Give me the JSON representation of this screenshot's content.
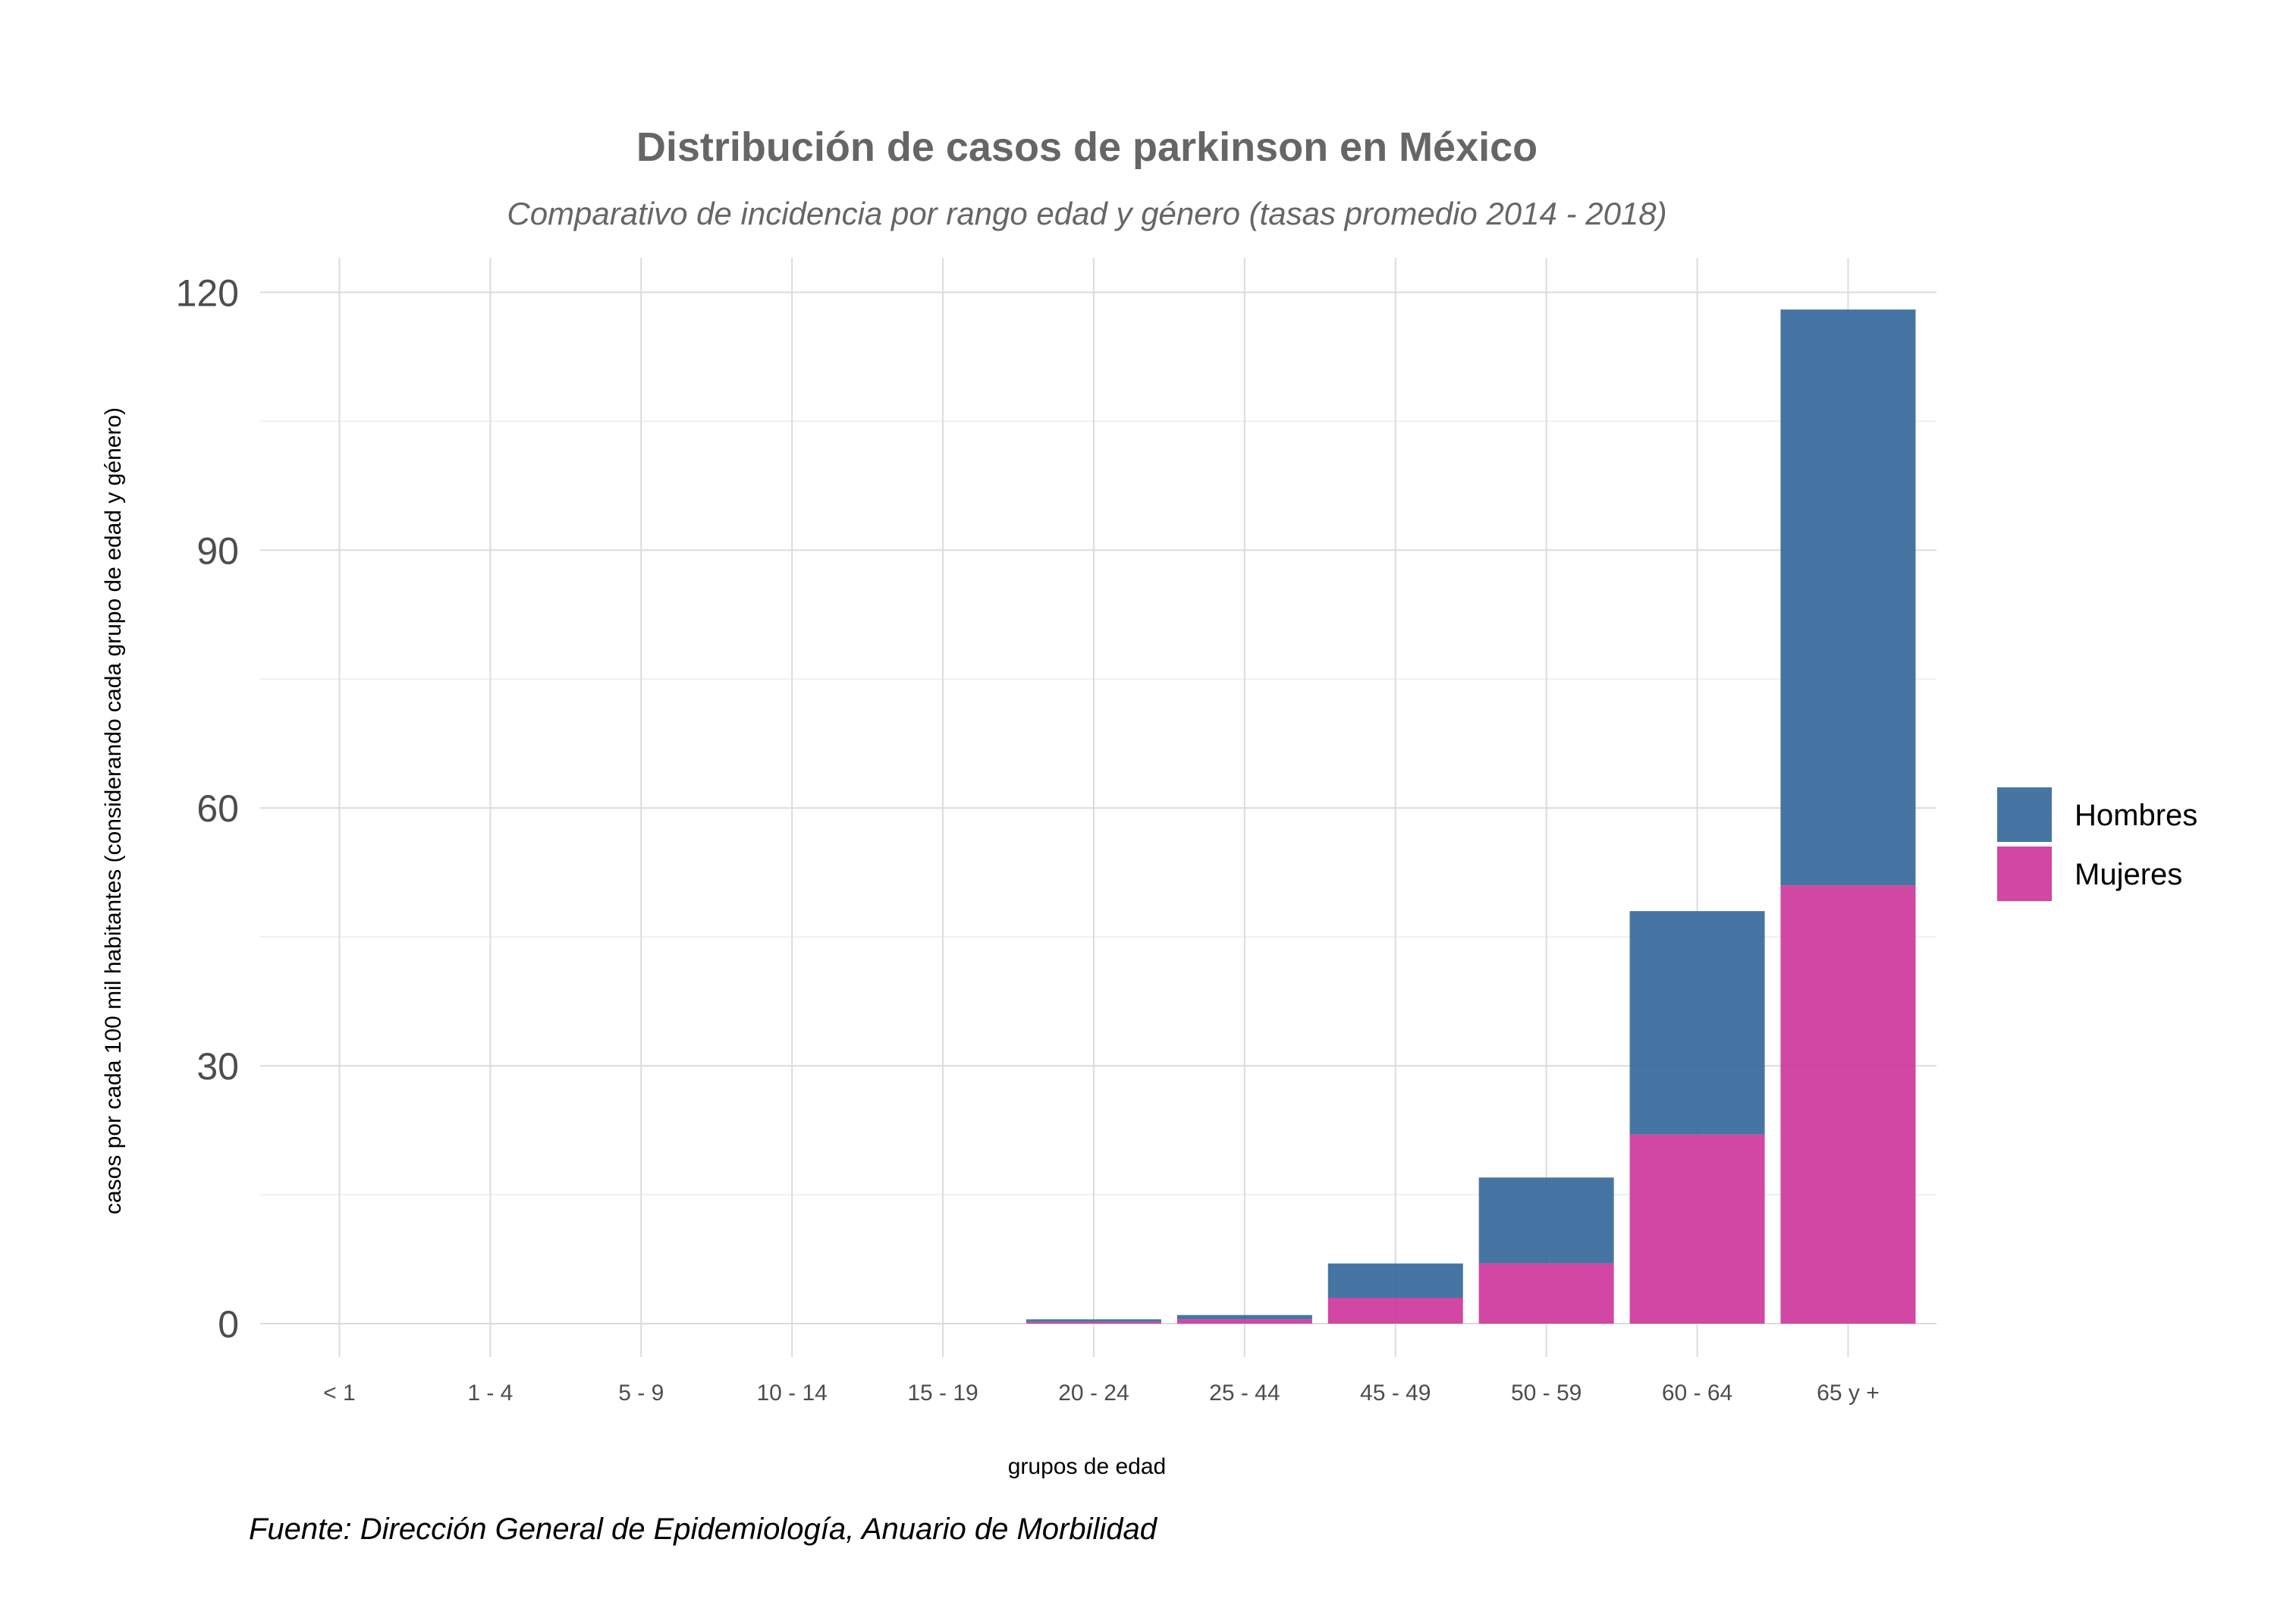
{
  "chart_data": {
    "type": "bar",
    "stacked": true,
    "title": "Distribución de casos de parkinson en México",
    "subtitle": "Comparativo de incidencia por rango edad y género (tasas promedio 2014 - 2018)",
    "xlabel": "grupos de edad",
    "ylabel": "casos por cada 100 mil habitantes (considerando cada grupo de edad y género)",
    "caption": "Fuente: Dirección General de Epidemiología, Anuario de Morbilidad",
    "categories": [
      "< 1",
      "1 - 4",
      "5 - 9",
      "10 - 14",
      "15 - 19",
      "20 - 24",
      "25 - 44",
      "45 - 49",
      "50 - 59",
      "60 - 64",
      "65 y +"
    ],
    "series": [
      {
        "name": "Mujeres",
        "color": "#cc3399",
        "values": [
          0,
          0,
          0,
          0,
          0,
          0.2,
          0.5,
          3,
          7,
          22,
          51
        ]
      },
      {
        "name": "Hombres",
        "color": "#336699",
        "values": [
          0,
          0,
          0,
          0,
          0,
          0.3,
          0.5,
          4,
          10,
          26,
          67
        ]
      }
    ],
    "legend": {
      "position": "right",
      "order": [
        "Hombres",
        "Mujeres"
      ]
    },
    "ylim": [
      -4,
      124
    ],
    "yticks": [
      0,
      30,
      60,
      90,
      120
    ],
    "grid": true
  }
}
